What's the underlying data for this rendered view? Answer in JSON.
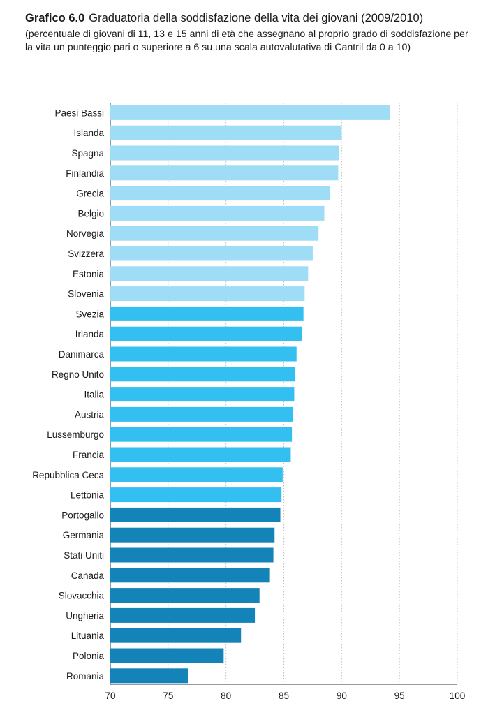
{
  "title": {
    "prefix": "Grafico 6.0",
    "main": "Graduatoria della soddisfazione della vita dei giovani (2009/2010)",
    "subtitle": "(percentuale di giovani di 11, 13 e 15 anni di età che assegnano al proprio grado di soddisfazione per la vita un punteggio pari o superiore a 6 su una scala autovalutativa di Cantril da 0 a 10)"
  },
  "colors": {
    "light": "#9fdcf5",
    "mid": "#33bff0",
    "dark": "#1483b8"
  },
  "chart_data": {
    "type": "bar",
    "orientation": "horizontal",
    "title": "Graduatoria della soddisfazione della vita dei giovani (2009/2010)",
    "xlabel": "",
    "ylabel": "",
    "xlim": [
      70,
      100
    ],
    "xticks": [
      70,
      75,
      80,
      85,
      90,
      95,
      100
    ],
    "grid": true,
    "categories": [
      "Paesi Bassi",
      "Islanda",
      "Spagna",
      "Finlandia",
      "Grecia",
      "Belgio",
      "Norvegia",
      "Svizzera",
      "Estonia",
      "Slovenia",
      "Svezia",
      "Irlanda",
      "Danimarca",
      "Regno Unito",
      "Italia",
      "Austria",
      "Lussemburgo",
      "Francia",
      "Repubblica Ceca",
      "Lettonia",
      "Portogallo",
      "Germania",
      "Stati Uniti",
      "Canada",
      "Slovacchia",
      "Ungheria",
      "Lituania",
      "Polonia",
      "Romania"
    ],
    "values": [
      94.2,
      90.0,
      89.8,
      89.7,
      89.0,
      88.5,
      88.0,
      87.5,
      87.1,
      86.8,
      86.7,
      86.6,
      86.1,
      86.0,
      85.9,
      85.8,
      85.7,
      85.6,
      84.9,
      84.8,
      84.7,
      84.2,
      84.1,
      83.8,
      82.9,
      82.5,
      81.3,
      79.8,
      76.7
    ],
    "color_groups": [
      "light",
      "light",
      "light",
      "light",
      "light",
      "light",
      "light",
      "light",
      "light",
      "light",
      "mid",
      "mid",
      "mid",
      "mid",
      "mid",
      "mid",
      "mid",
      "mid",
      "mid",
      "mid",
      "dark",
      "dark",
      "dark",
      "dark",
      "dark",
      "dark",
      "dark",
      "dark",
      "dark"
    ]
  }
}
